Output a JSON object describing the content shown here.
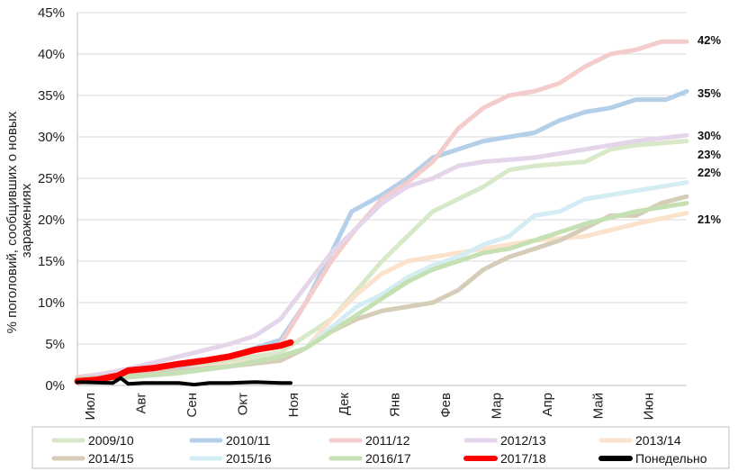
{
  "chart_data": {
    "type": "line",
    "title": "",
    "xlabel": "",
    "ylabel": "% поголовий, сообщивших о новых заражениях",
    "ylim": [
      0,
      45
    ],
    "grid": true,
    "legend_position": "bottom",
    "y_ticks": [
      "0%",
      "5%",
      "10%",
      "15%",
      "20%",
      "25%",
      "30%",
      "35%",
      "40%",
      "45%"
    ],
    "x_months": [
      "Июл",
      "Авг",
      "Сен",
      "Окт",
      "Ноя",
      "Дек",
      "Янв",
      "Фев",
      "Мар",
      "Апр",
      "Май",
      "Июн"
    ],
    "x_range": [
      0,
      12
    ],
    "end_labels": [
      "42%",
      "35%",
      "30%",
      "23%",
      "22%",
      "21%"
    ],
    "series": [
      {
        "name": "2009/10",
        "color": "#d8e9c9",
        "width": 5,
        "points": [
          [
            0,
            0.8
          ],
          [
            1,
            1.8
          ],
          [
            2,
            2.3
          ],
          [
            3,
            3.0
          ],
          [
            4,
            4.0
          ],
          [
            5,
            8.0
          ],
          [
            6,
            15.0
          ],
          [
            7,
            21.0
          ],
          [
            8,
            24.0
          ],
          [
            8.5,
            26.0
          ],
          [
            9,
            26.5
          ],
          [
            10,
            27.0
          ],
          [
            10.5,
            28.5
          ],
          [
            11,
            29.0
          ],
          [
            12,
            29.5
          ]
        ]
      },
      {
        "name": "2010/11",
        "color": "#b4cfe8",
        "width": 5,
        "points": [
          [
            0,
            0.8
          ],
          [
            1,
            1.5
          ],
          [
            2,
            2.3
          ],
          [
            3,
            3.5
          ],
          [
            4,
            5.5
          ],
          [
            4.5,
            10.0
          ],
          [
            5,
            16.0
          ],
          [
            5.4,
            21.0
          ],
          [
            6,
            23.0
          ],
          [
            6.5,
            25.0
          ],
          [
            7,
            27.5
          ],
          [
            7.5,
            28.5
          ],
          [
            8,
            29.5
          ],
          [
            9,
            30.5
          ],
          [
            9.5,
            32.0
          ],
          [
            10,
            33.0
          ],
          [
            10.5,
            33.5
          ],
          [
            11,
            34.5
          ],
          [
            11.6,
            34.5
          ],
          [
            12,
            35.5
          ]
        ]
      },
      {
        "name": "2011/12",
        "color": "#f5cccc",
        "width": 5,
        "points": [
          [
            0,
            1.0
          ],
          [
            1,
            1.8
          ],
          [
            2,
            2.5
          ],
          [
            3,
            3.3
          ],
          [
            4,
            5.0
          ],
          [
            4.5,
            10.0
          ],
          [
            5,
            15.0
          ],
          [
            5.5,
            19.0
          ],
          [
            6,
            22.5
          ],
          [
            6.5,
            24.5
          ],
          [
            7,
            27.0
          ],
          [
            7.5,
            31.0
          ],
          [
            8,
            33.5
          ],
          [
            8.5,
            35.0
          ],
          [
            9,
            35.5
          ],
          [
            9.5,
            36.5
          ],
          [
            10,
            38.5
          ],
          [
            10.5,
            40.0
          ],
          [
            11,
            40.5
          ],
          [
            11.5,
            41.5
          ],
          [
            12,
            41.5
          ]
        ]
      },
      {
        "name": "2012/13",
        "color": "#e4d5eb",
        "width": 5,
        "points": [
          [
            0,
            0.8
          ],
          [
            1,
            2.0
          ],
          [
            2,
            3.5
          ],
          [
            3,
            5.0
          ],
          [
            3.5,
            6.0
          ],
          [
            4,
            8.0
          ],
          [
            4.5,
            12.0
          ],
          [
            5,
            16.0
          ],
          [
            5.5,
            19.0
          ],
          [
            6,
            22.0
          ],
          [
            6.5,
            24.0
          ],
          [
            7,
            25.0
          ],
          [
            7.5,
            26.5
          ],
          [
            8,
            27.0
          ],
          [
            9,
            27.5
          ],
          [
            10,
            28.5
          ],
          [
            11,
            29.5
          ],
          [
            12,
            30.2
          ]
        ]
      },
      {
        "name": "2013/14",
        "color": "#fbe2cc",
        "width": 5,
        "points": [
          [
            0,
            0.5
          ],
          [
            1,
            1.2
          ],
          [
            2,
            1.8
          ],
          [
            3,
            2.5
          ],
          [
            4,
            3.5
          ],
          [
            4.5,
            4.5
          ],
          [
            5,
            8.0
          ],
          [
            5.5,
            11.0
          ],
          [
            6,
            13.5
          ],
          [
            6.5,
            15.0
          ],
          [
            7,
            15.5
          ],
          [
            7.5,
            16.0
          ],
          [
            8,
            16.5
          ],
          [
            9,
            17.5
          ],
          [
            10,
            18.0
          ],
          [
            11,
            19.5
          ],
          [
            12,
            20.8
          ]
        ]
      },
      {
        "name": "2014/15",
        "color": "#d6cdb8",
        "width": 5,
        "points": [
          [
            0,
            0.8
          ],
          [
            1,
            1.2
          ],
          [
            2,
            1.8
          ],
          [
            3,
            2.3
          ],
          [
            4,
            3.0
          ],
          [
            4.5,
            4.5
          ],
          [
            5,
            6.5
          ],
          [
            5.5,
            8.0
          ],
          [
            6,
            9.0
          ],
          [
            6.5,
            9.5
          ],
          [
            7,
            10.0
          ],
          [
            7.5,
            11.5
          ],
          [
            8,
            14.0
          ],
          [
            8.5,
            15.5
          ],
          [
            9,
            16.5
          ],
          [
            9.5,
            17.5
          ],
          [
            10,
            19.0
          ],
          [
            10.5,
            20.5
          ],
          [
            11,
            20.5
          ],
          [
            11.5,
            22.0
          ],
          [
            12,
            22.8
          ]
        ]
      },
      {
        "name": "2015/16",
        "color": "#d4ecf3",
        "width": 5,
        "points": [
          [
            0,
            0.5
          ],
          [
            1,
            1.0
          ],
          [
            2,
            1.5
          ],
          [
            3,
            2.3
          ],
          [
            4,
            3.5
          ],
          [
            4.5,
            4.5
          ],
          [
            5,
            7.0
          ],
          [
            5.5,
            9.5
          ],
          [
            6,
            11.0
          ],
          [
            6.5,
            13.0
          ],
          [
            7,
            14.5
          ],
          [
            7.5,
            15.5
          ],
          [
            8,
            17.0
          ],
          [
            8.5,
            18.0
          ],
          [
            9,
            20.5
          ],
          [
            9.5,
            21.0
          ],
          [
            10,
            22.5
          ],
          [
            10.5,
            23.0
          ],
          [
            11,
            23.5
          ],
          [
            12,
            24.5
          ]
        ]
      },
      {
        "name": "2016/17",
        "color": "#c5e0b3",
        "width": 5,
        "points": [
          [
            0,
            0.5
          ],
          [
            1,
            1.0
          ],
          [
            2,
            1.5
          ],
          [
            3,
            2.3
          ],
          [
            4,
            3.5
          ],
          [
            4.5,
            4.5
          ],
          [
            5,
            6.5
          ],
          [
            5.5,
            8.5
          ],
          [
            6,
            10.5
          ],
          [
            6.5,
            12.5
          ],
          [
            7,
            14.0
          ],
          [
            7.5,
            15.0
          ],
          [
            8,
            16.0
          ],
          [
            8.5,
            16.5
          ],
          [
            9,
            17.5
          ],
          [
            10,
            19.5
          ],
          [
            11,
            21.0
          ],
          [
            12,
            22.0
          ]
        ]
      },
      {
        "name": "2017/18",
        "color": "#ff0000",
        "width": 7,
        "points": [
          [
            0,
            0.5
          ],
          [
            0.4,
            0.7
          ],
          [
            0.8,
            1.2
          ],
          [
            1,
            1.8
          ],
          [
            1.5,
            2.1
          ],
          [
            2,
            2.6
          ],
          [
            2.5,
            3.0
          ],
          [
            3,
            3.5
          ],
          [
            3.5,
            4.3
          ],
          [
            4,
            4.8
          ],
          [
            4.2,
            5.2
          ]
        ]
      },
      {
        "name": "Понедельно",
        "color": "#000000",
        "width": 4,
        "points": [
          [
            0,
            0.4
          ],
          [
            0.7,
            0.3
          ],
          [
            0.85,
            0.9
          ],
          [
            1,
            0.2
          ],
          [
            1.3,
            0.3
          ],
          [
            2,
            0.3
          ],
          [
            2.3,
            0.1
          ],
          [
            2.6,
            0.3
          ],
          [
            3,
            0.3
          ],
          [
            3.5,
            0.4
          ],
          [
            4,
            0.3
          ],
          [
            4.2,
            0.3
          ]
        ]
      }
    ]
  },
  "legend": {
    "items": [
      {
        "label": "2009/10",
        "color": "#d8e9c9",
        "bold": false
      },
      {
        "label": "2010/11",
        "color": "#b4cfe8",
        "bold": false
      },
      {
        "label": "2011/12",
        "color": "#f5cccc",
        "bold": false
      },
      {
        "label": "2012/13",
        "color": "#e4d5eb",
        "bold": false
      },
      {
        "label": "2013/14",
        "color": "#fbe2cc",
        "bold": false
      },
      {
        "label": "2014/15",
        "color": "#d6cdb8",
        "bold": false
      },
      {
        "label": "2015/16",
        "color": "#d4ecf3",
        "bold": false
      },
      {
        "label": "2016/17",
        "color": "#c5e0b3",
        "bold": false
      },
      {
        "label": "2017/18",
        "color": "#ff0000",
        "bold": true
      },
      {
        "label": "Понедельно",
        "color": "#000000",
        "bold": true
      }
    ]
  }
}
